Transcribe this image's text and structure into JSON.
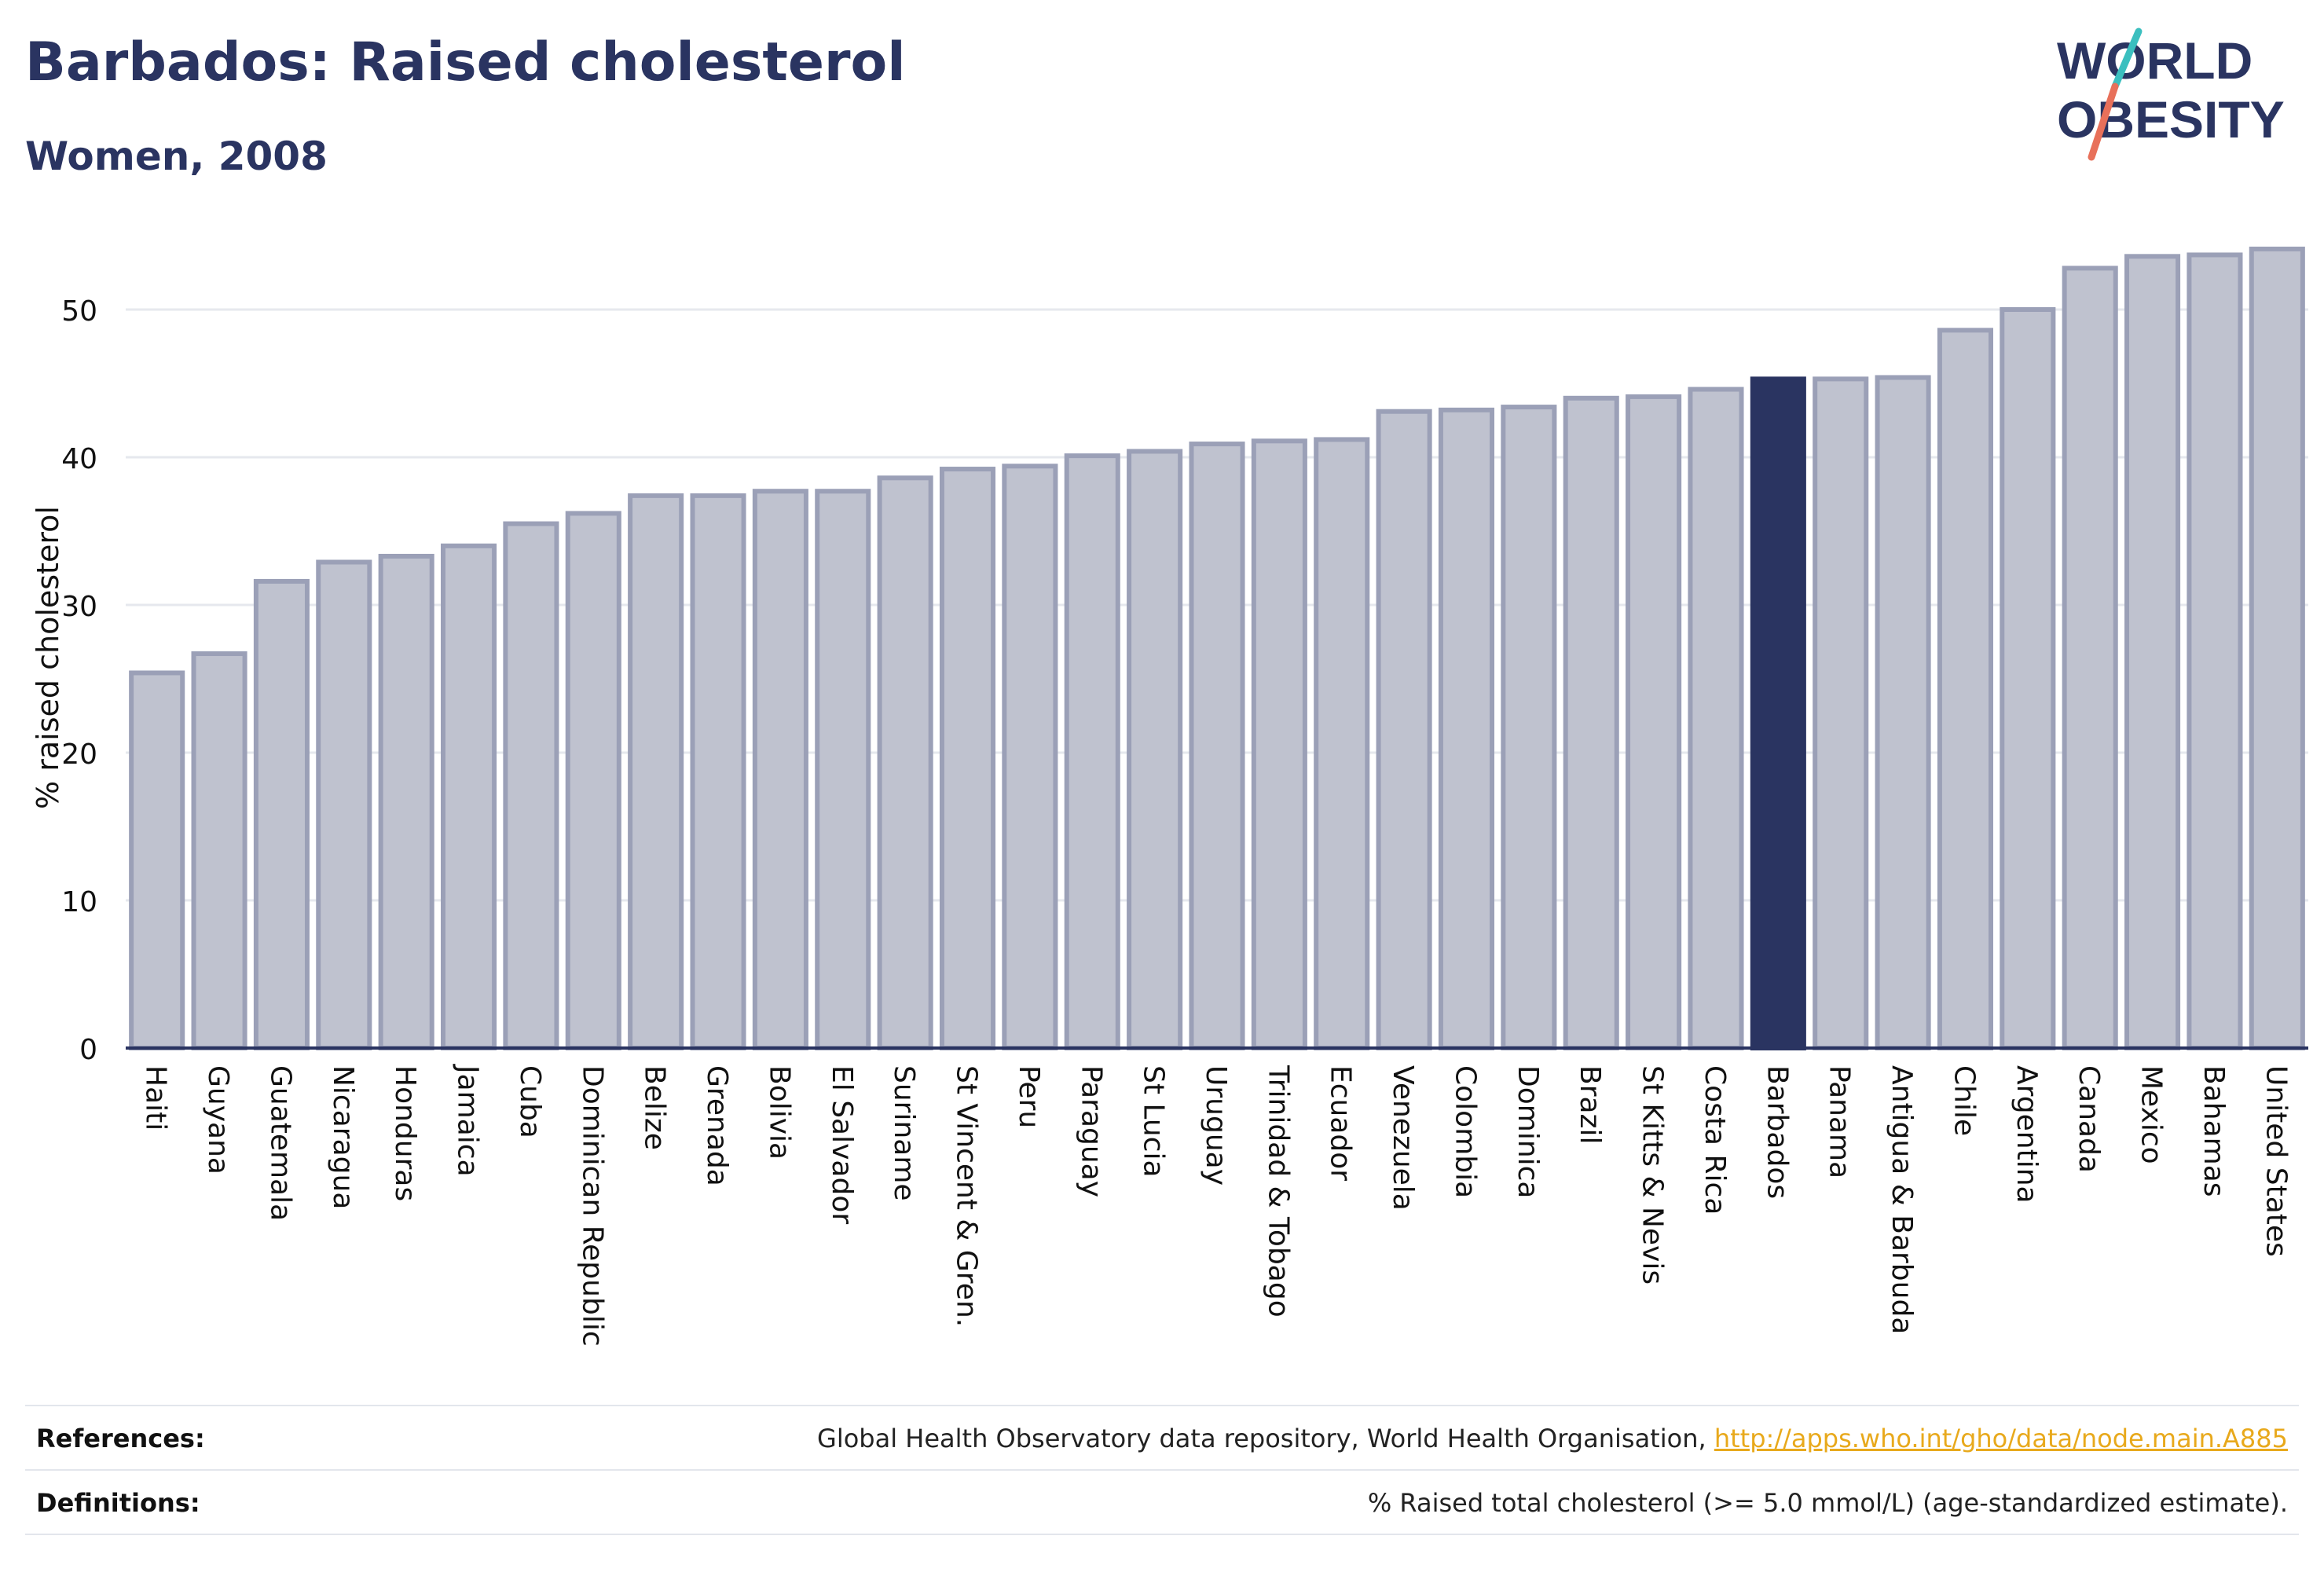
{
  "header": {
    "title": "Barbados: Raised cholesterol",
    "subtitle": "Women, 2008"
  },
  "logo": {
    "line1": "WORLD",
    "line2": "OBESITY",
    "text_color": "#2a3461",
    "slash_colors": [
      "#3bbfbf",
      "#e8705a"
    ]
  },
  "chart_data": {
    "type": "bar",
    "ylabel": "% raised cholesterol",
    "xlabel": "",
    "ylim": [
      0,
      55
    ],
    "yticks": [
      0,
      10,
      20,
      30,
      40,
      50
    ],
    "grid": true,
    "categories": [
      "Haiti",
      "Guyana",
      "Guatemala",
      "Nicaragua",
      "Honduras",
      "Jamaica",
      "Cuba",
      "Dominican Republic",
      "Belize",
      "Grenada",
      "Bolivia",
      "El Salvador",
      "Suriname",
      "St Vincent & Gren.",
      "Peru",
      "Paraguay",
      "St Lucia",
      "Uruguay",
      "Trinidad & Tobago",
      "Ecuador",
      "Venezuela",
      "Colombia",
      "Dominica",
      "Brazil",
      "St Kitts & Nevis",
      "Costa Rica",
      "Barbados",
      "Panama",
      "Antigua & Barbuda",
      "Chile",
      "Argentina",
      "Canada",
      "Mexico",
      "Bahamas",
      "United States"
    ],
    "values": [
      25.4,
      26.7,
      31.6,
      32.9,
      33.3,
      34.0,
      35.5,
      36.2,
      37.4,
      37.4,
      37.7,
      37.7,
      38.6,
      39.2,
      39.4,
      40.1,
      40.4,
      40.9,
      41.1,
      41.2,
      43.1,
      43.2,
      43.4,
      44.0,
      44.1,
      44.6,
      45.3,
      45.3,
      45.4,
      48.6,
      50.0,
      52.8,
      53.6,
      53.7,
      54.1
    ],
    "highlight": "Barbados",
    "colors": {
      "bar": "#bfc2cf",
      "bar_border": "#9ba0b7",
      "highlight": "#2a3461",
      "grid": "#e6e8ee",
      "axis": "#2a3461"
    }
  },
  "footer": {
    "references_label": "References:",
    "references_text": "Global Health Observatory data repository, World Health Organisation, ",
    "references_link": "http://apps.who.int/gho/data/node.main.A885",
    "definitions_label": "Definitions:",
    "definitions_text": "% Raised total cholesterol (>= 5.0 mmol/L) (age-standardized estimate)."
  }
}
